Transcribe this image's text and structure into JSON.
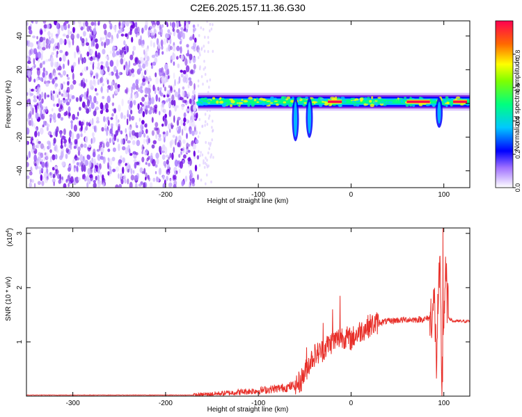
{
  "title": "C2E6.2025.157.11.36.G30",
  "colors": {
    "snr_line": "#e8302a",
    "colormap": [
      "#ffffff",
      "#8a2be2",
      "#0000ff",
      "#00c8ff",
      "#00ff7f",
      "#ffff00",
      "#ff6a00",
      "#ff0050"
    ]
  },
  "chart_data": [
    {
      "type": "heatmap",
      "title": "C2E6.2025.157.11.36.G30",
      "xlabel": "Height of straight line (km)",
      "ylabel": "Frequency (Hz)",
      "xlim": [
        -350,
        128
      ],
      "ylim": [
        -50,
        49
      ],
      "xticks": [
        -300,
        -200,
        -100,
        0,
        100
      ],
      "yticks": [
        -40,
        -20,
        0,
        20,
        40
      ],
      "colorbar": {
        "label": "Normalized spectral amplitude",
        "range": [
          0,
          1
        ],
        "ticks": [
          "0.0",
          "0.2",
          "0.4",
          "0.6",
          "0.8"
        ],
        "tick_values": [
          0.0,
          0.2,
          0.4,
          0.6,
          0.8
        ]
      },
      "features": {
        "noise_region_km": [
          -350,
          -165
        ],
        "signal_band_start_km": -165,
        "signal_band_center_hz": 1,
        "signal_band_halfwidth_hz": 3,
        "perturbation_km": [
          -60,
          -45,
          95
        ],
        "perturbation_hz": [
          -20,
          -18,
          -12
        ],
        "peak_segments_km": [
          [
            -25,
            -10
          ],
          [
            60,
            85
          ],
          [
            110,
            125
          ]
        ]
      }
    },
    {
      "type": "line",
      "xlabel": "Height of straight line (km)",
      "ylabel": "SNR (10 * v/v)",
      "y_multiplier": "(x10",
      "y_multiplier_exponent": "4",
      "y_multiplier_close": ")",
      "xlim": [
        -350,
        128
      ],
      "ylim": [
        0,
        3.1
      ],
      "xticks": [
        -300,
        -200,
        -100,
        0,
        100
      ],
      "yticks": [
        1,
        2,
        3
      ],
      "series": [
        {
          "x": [
            -350,
            -300,
            -250,
            -200,
            -170,
            -150,
            -130,
            -110,
            -100,
            -90,
            -80,
            -70,
            -60,
            -55,
            -50,
            -45,
            -40,
            -35,
            -30,
            -25,
            -20,
            -15,
            -10,
            -5,
            0,
            10,
            20,
            30,
            40,
            50,
            60,
            70,
            80,
            85,
            88,
            90,
            92,
            94,
            96,
            98,
            100,
            102,
            105,
            110,
            120,
            128
          ],
          "y": [
            0.02,
            0.02,
            0.02,
            0.02,
            0.02,
            0.04,
            0.06,
            0.09,
            0.1,
            0.12,
            0.14,
            0.16,
            0.2,
            0.26,
            0.42,
            0.62,
            0.75,
            0.8,
            0.85,
            0.95,
            1.0,
            1.05,
            1.1,
            1.08,
            1.05,
            1.2,
            1.3,
            1.36,
            1.38,
            1.4,
            1.41,
            1.41,
            1.42,
            1.45,
            1.6,
            1.7,
            0.6,
            1.8,
            2.2,
            0.15,
            1.5,
            2.2,
            1.45,
            1.38,
            1.38,
            1.38
          ],
          "spikes": [
            {
              "x": -48,
              "y": 0.9
            },
            {
              "x": -30,
              "y": 1.35
            },
            {
              "x": -20,
              "y": 1.6
            },
            {
              "x": -12,
              "y": 1.85
            },
            {
              "x": 99,
              "y": 3.1
            }
          ]
        }
      ]
    }
  ]
}
